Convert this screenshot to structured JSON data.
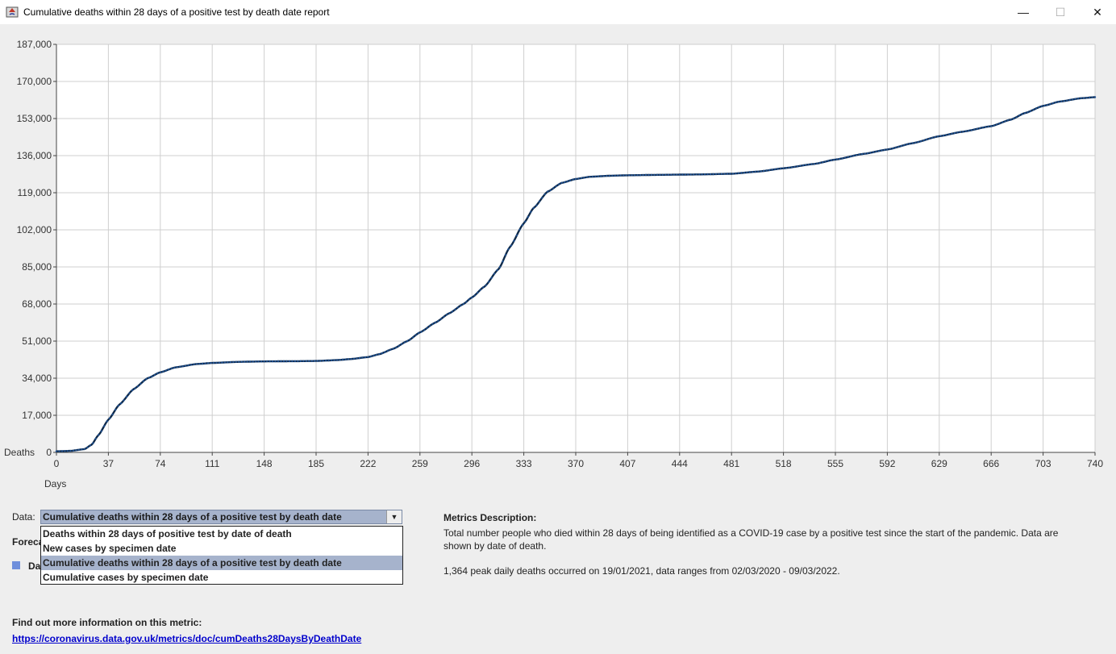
{
  "window": {
    "title": "Cumulative deaths within 28 days of a positive test by death date report",
    "icon": "java-app-icon",
    "controls": {
      "minimize": "—",
      "maximize": "☐",
      "close": "✕"
    }
  },
  "chart_data": {
    "type": "line",
    "title": "",
    "xlabel": "Days",
    "ylabel": "Deaths",
    "xlim": [
      0,
      740
    ],
    "ylim": [
      0,
      187000
    ],
    "x_ticks": [
      0,
      37,
      74,
      111,
      148,
      185,
      222,
      259,
      296,
      333,
      370,
      407,
      444,
      481,
      518,
      555,
      592,
      629,
      666,
      703,
      740
    ],
    "y_ticks": [
      0,
      17000,
      34000,
      51000,
      68000,
      85000,
      102000,
      119000,
      136000,
      153000,
      170000,
      187000
    ],
    "y_tick_labels": [
      "0",
      "17,000",
      "34,000",
      "51,000",
      "68,000",
      "85,000",
      "102,000",
      "119,000",
      "136,000",
      "153,000",
      "170,000",
      "187,000"
    ],
    "grid": true,
    "series": [
      {
        "name": "",
        "color": "#0f2a4a",
        "x": [
          0,
          10,
          20,
          25,
          30,
          37,
          45,
          55,
          65,
          74,
          85,
          100,
          111,
          130,
          148,
          170,
          185,
          200,
          210,
          222,
          230,
          240,
          250,
          259,
          270,
          280,
          290,
          296,
          305,
          315,
          323,
          333,
          340,
          350,
          360,
          370,
          380,
          395,
          407,
          430,
          444,
          460,
          481,
          500,
          518,
          540,
          555,
          575,
          592,
          610,
          629,
          645,
          666,
          680,
          690,
          703,
          715,
          730,
          740
        ],
        "y": [
          500,
          700,
          1500,
          3500,
          8000,
          15000,
          22000,
          29000,
          34000,
          36700,
          39000,
          40500,
          41000,
          41500,
          41700,
          41800,
          41900,
          42300,
          42800,
          43700,
          45000,
          47500,
          51000,
          55000,
          59500,
          63800,
          68000,
          71000,
          76000,
          84000,
          94000,
          105000,
          112000,
          119500,
          123500,
          125300,
          126300,
          126800,
          127000,
          127200,
          127300,
          127400,
          127700,
          128700,
          130200,
          132200,
          134200,
          136800,
          138800,
          141700,
          144900,
          146900,
          149500,
          152500,
          155500,
          158800,
          160800,
          162300,
          162800
        ]
      }
    ]
  },
  "controls": {
    "data_label": "Data:",
    "data_selected": "Cumulative deaths within 28 days of a positive test by death date",
    "data_options": [
      "Deaths within 28 days of positive test by date of death",
      "New cases by specimen date",
      "Cumulative deaths within 28 days of a positive test by death date",
      "Cumulative cases by specimen date"
    ],
    "selected_index": 2,
    "forecast_label": "Foreca",
    "legend_label": "Da",
    "legend_color": "#6f8fdc"
  },
  "metrics": {
    "heading": "Metrics Description:",
    "description": "Total number people who died within 28 days of being identified as a COVID-19 case by a positive test since the start of the pandemic. Data are shown by date of death.",
    "peak": "1,364 peak daily deaths occurred on 19/01/2021, data ranges from 02/03/2020 - 09/03/2022."
  },
  "more_info": {
    "label": "Find out more information on this metric:",
    "link": "https://coronavirus.data.gov.uk/metrics/doc/cumDeaths28DaysByDeathDate"
  }
}
